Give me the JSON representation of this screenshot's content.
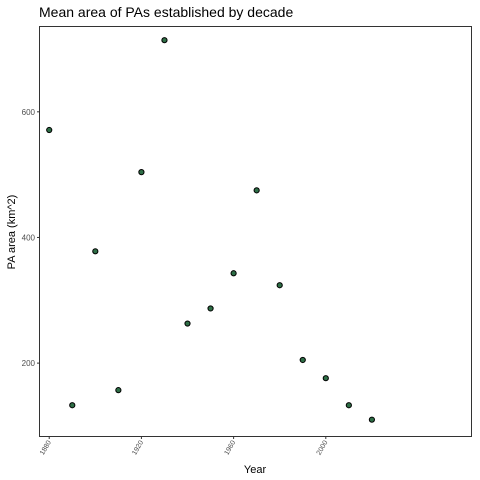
{
  "chart_data": {
    "type": "scatter",
    "title": "Mean area of PAs established by decade",
    "xlabel": "Year",
    "ylabel": "PA area (km^2)",
    "xlim": [
      1876,
      2063
    ],
    "ylim": [
      84,
      735
    ],
    "x_ticks": [
      1880,
      1920,
      1960,
      2000
    ],
    "x_tick_labels": [
      "1880",
      "1920",
      "1960",
      "2000"
    ],
    "y_ticks": [
      200,
      400,
      600
    ],
    "y_tick_labels": [
      "200",
      "400",
      "600"
    ],
    "grid": false,
    "legend": "none",
    "point_color": "#2e6e46",
    "points": [
      {
        "x": 1880,
        "y": 571
      },
      {
        "x": 1890,
        "y": 133
      },
      {
        "x": 1900,
        "y": 378
      },
      {
        "x": 1910,
        "y": 157
      },
      {
        "x": 1920,
        "y": 504
      },
      {
        "x": 1930,
        "y": 714
      },
      {
        "x": 1940,
        "y": 263
      },
      {
        "x": 1950,
        "y": 287
      },
      {
        "x": 1960,
        "y": 343
      },
      {
        "x": 1970,
        "y": 475
      },
      {
        "x": 1980,
        "y": 324
      },
      {
        "x": 1990,
        "y": 205
      },
      {
        "x": 2000,
        "y": 176
      },
      {
        "x": 2010,
        "y": 133
      },
      {
        "x": 2020,
        "y": 110
      }
    ]
  }
}
